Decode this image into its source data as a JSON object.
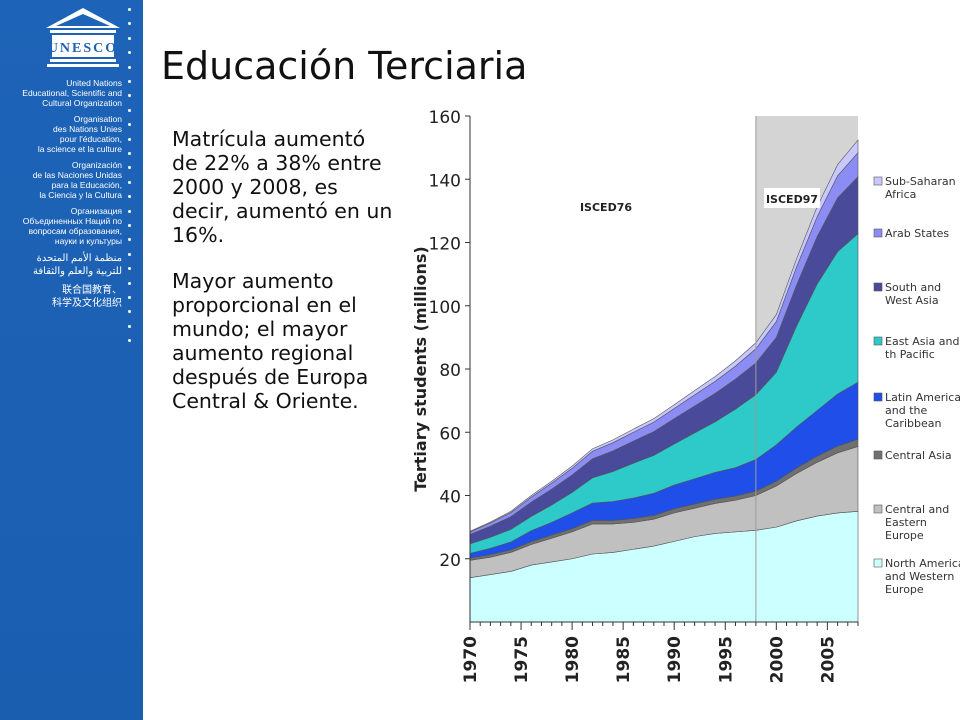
{
  "sidebar": {
    "logo_text": "UNESCO",
    "org_names": [
      [
        "United Nations",
        "Educational, Scientific and",
        "Cultural Organization"
      ],
      [
        "Organisation",
        "des Nations Unies",
        "pour l'éducation,",
        "la science et la culture"
      ],
      [
        "Organización",
        "de las Naciones Unidas",
        "para la Educación,",
        "la Ciencia y la Cultura"
      ],
      [
        "Организация",
        "Объединенных Наций по",
        "вопросам образования,",
        "науки и культуры"
      ],
      [
        "منظمة الأمم المتحدة",
        "للتربية والعلم والثقافة"
      ],
      [
        "联合国教育、",
        "科学及文化组织"
      ]
    ]
  },
  "slide": {
    "title": "Educación Terciaria",
    "paragraphs": [
      "Matrícula aumentó de 22% a 38% entre 2000 y 2008, es decir, aumentó en un 16%.",
      "Mayor aumento proporcional en el mundo; el mayor aumento regional después de Europa Central & Oriente."
    ]
  },
  "chart_data": {
    "type": "area",
    "stacked": true,
    "ylabel": "Tertiary students (millions)",
    "xlabel": "",
    "ylim": [
      0,
      160
    ],
    "xlim": [
      1970,
      2008
    ],
    "y_ticks": [
      20,
      40,
      60,
      80,
      100,
      120,
      140,
      160
    ],
    "x_ticks": [
      1970,
      1975,
      1980,
      1985,
      1990,
      1995,
      2000,
      2005
    ],
    "annotations": [
      "ISCED76",
      "ISCED97"
    ],
    "isced97_shaded_from": 1998,
    "x": [
      1970,
      1972,
      1974,
      1976,
      1978,
      1980,
      1982,
      1984,
      1986,
      1988,
      1990,
      1992,
      1994,
      1996,
      1998,
      2000,
      2002,
      2004,
      2006,
      2008
    ],
    "series": [
      {
        "name": "North America and Western Europe",
        "color": "#ccffff",
        "values": [
          14,
          15,
          16,
          18,
          19,
          20,
          21.5,
          22,
          23,
          24,
          25.5,
          27,
          28,
          28.5,
          29,
          30,
          32,
          33.5,
          34.5,
          35
        ]
      },
      {
        "name": "Central and Eastern Europe",
        "color": "#c0c0c0",
        "values": [
          5.5,
          5.5,
          6,
          6.5,
          7.5,
          8.5,
          9.5,
          9,
          8.5,
          8.5,
          9,
          9,
          9.5,
          10,
          11,
          13,
          15,
          17,
          19,
          20.5
        ]
      },
      {
        "name": "Central Asia",
        "color": "#707070",
        "values": [
          0.7,
          0.8,
          0.8,
          0.9,
          1,
          1,
          1.1,
          1.1,
          1.2,
          1.2,
          1.3,
          1.3,
          1.3,
          1.3,
          1.4,
          1.5,
          1.7,
          1.9,
          2.1,
          2.3
        ]
      },
      {
        "name": "Latin America and the Caribbean",
        "color": "#1f4fe8",
        "values": [
          1.5,
          2,
          2.5,
          3.5,
          4,
          5,
          5.5,
          6,
          6.5,
          7,
          7.5,
          8,
          8.5,
          9,
          10,
          11.5,
          13,
          14.5,
          16.5,
          18
        ]
      },
      {
        "name": "East Asia and the Pacific",
        "color": "#2ec9c9",
        "values": [
          3,
          3.5,
          4,
          4.5,
          5.5,
          6.5,
          8,
          9.5,
          11,
          12,
          13,
          14.5,
          16,
          18.5,
          20.5,
          23,
          32,
          40,
          45,
          47
        ]
      },
      {
        "name": "South and West Asia",
        "color": "#4a4a9a",
        "values": [
          3,
          3.5,
          4,
          4.5,
          5,
          5.5,
          6,
          6.5,
          7,
          7.5,
          8,
          8.5,
          9,
          9.5,
          10,
          11,
          13,
          15,
          17,
          18
        ]
      },
      {
        "name": "Arab States",
        "color": "#8c8cf5",
        "values": [
          0.8,
          1,
          1.3,
          1.6,
          1.9,
          2.1,
          2.4,
          2.6,
          2.8,
          3,
          3.2,
          3.5,
          3.8,
          4.1,
          4.5,
          5,
          5.7,
          6.3,
          7,
          7.6
        ]
      },
      {
        "name": "Sub-Saharan Africa",
        "color": "#c8c8ff",
        "values": [
          0.2,
          0.3,
          0.4,
          0.5,
          0.6,
          0.7,
          0.8,
          0.9,
          1,
          1.1,
          1.2,
          1.4,
          1.5,
          1.7,
          1.9,
          2.2,
          2.6,
          3.1,
          3.5,
          4
        ]
      }
    ],
    "legend": [
      "Sub-Saharan Africa",
      "Arab States",
      "South and West Asia",
      "East Asia and th Pacific",
      "Latin America and the Caribbean",
      "Central Asia",
      "Central and Eastern Europe",
      "North America and Western Europe"
    ],
    "legend_colors": [
      "#c8c8ff",
      "#8c8cf5",
      "#4a4a9a",
      "#2ec9c9",
      "#1f4fe8",
      "#707070",
      "#c0c0c0",
      "#ccffff"
    ]
  }
}
